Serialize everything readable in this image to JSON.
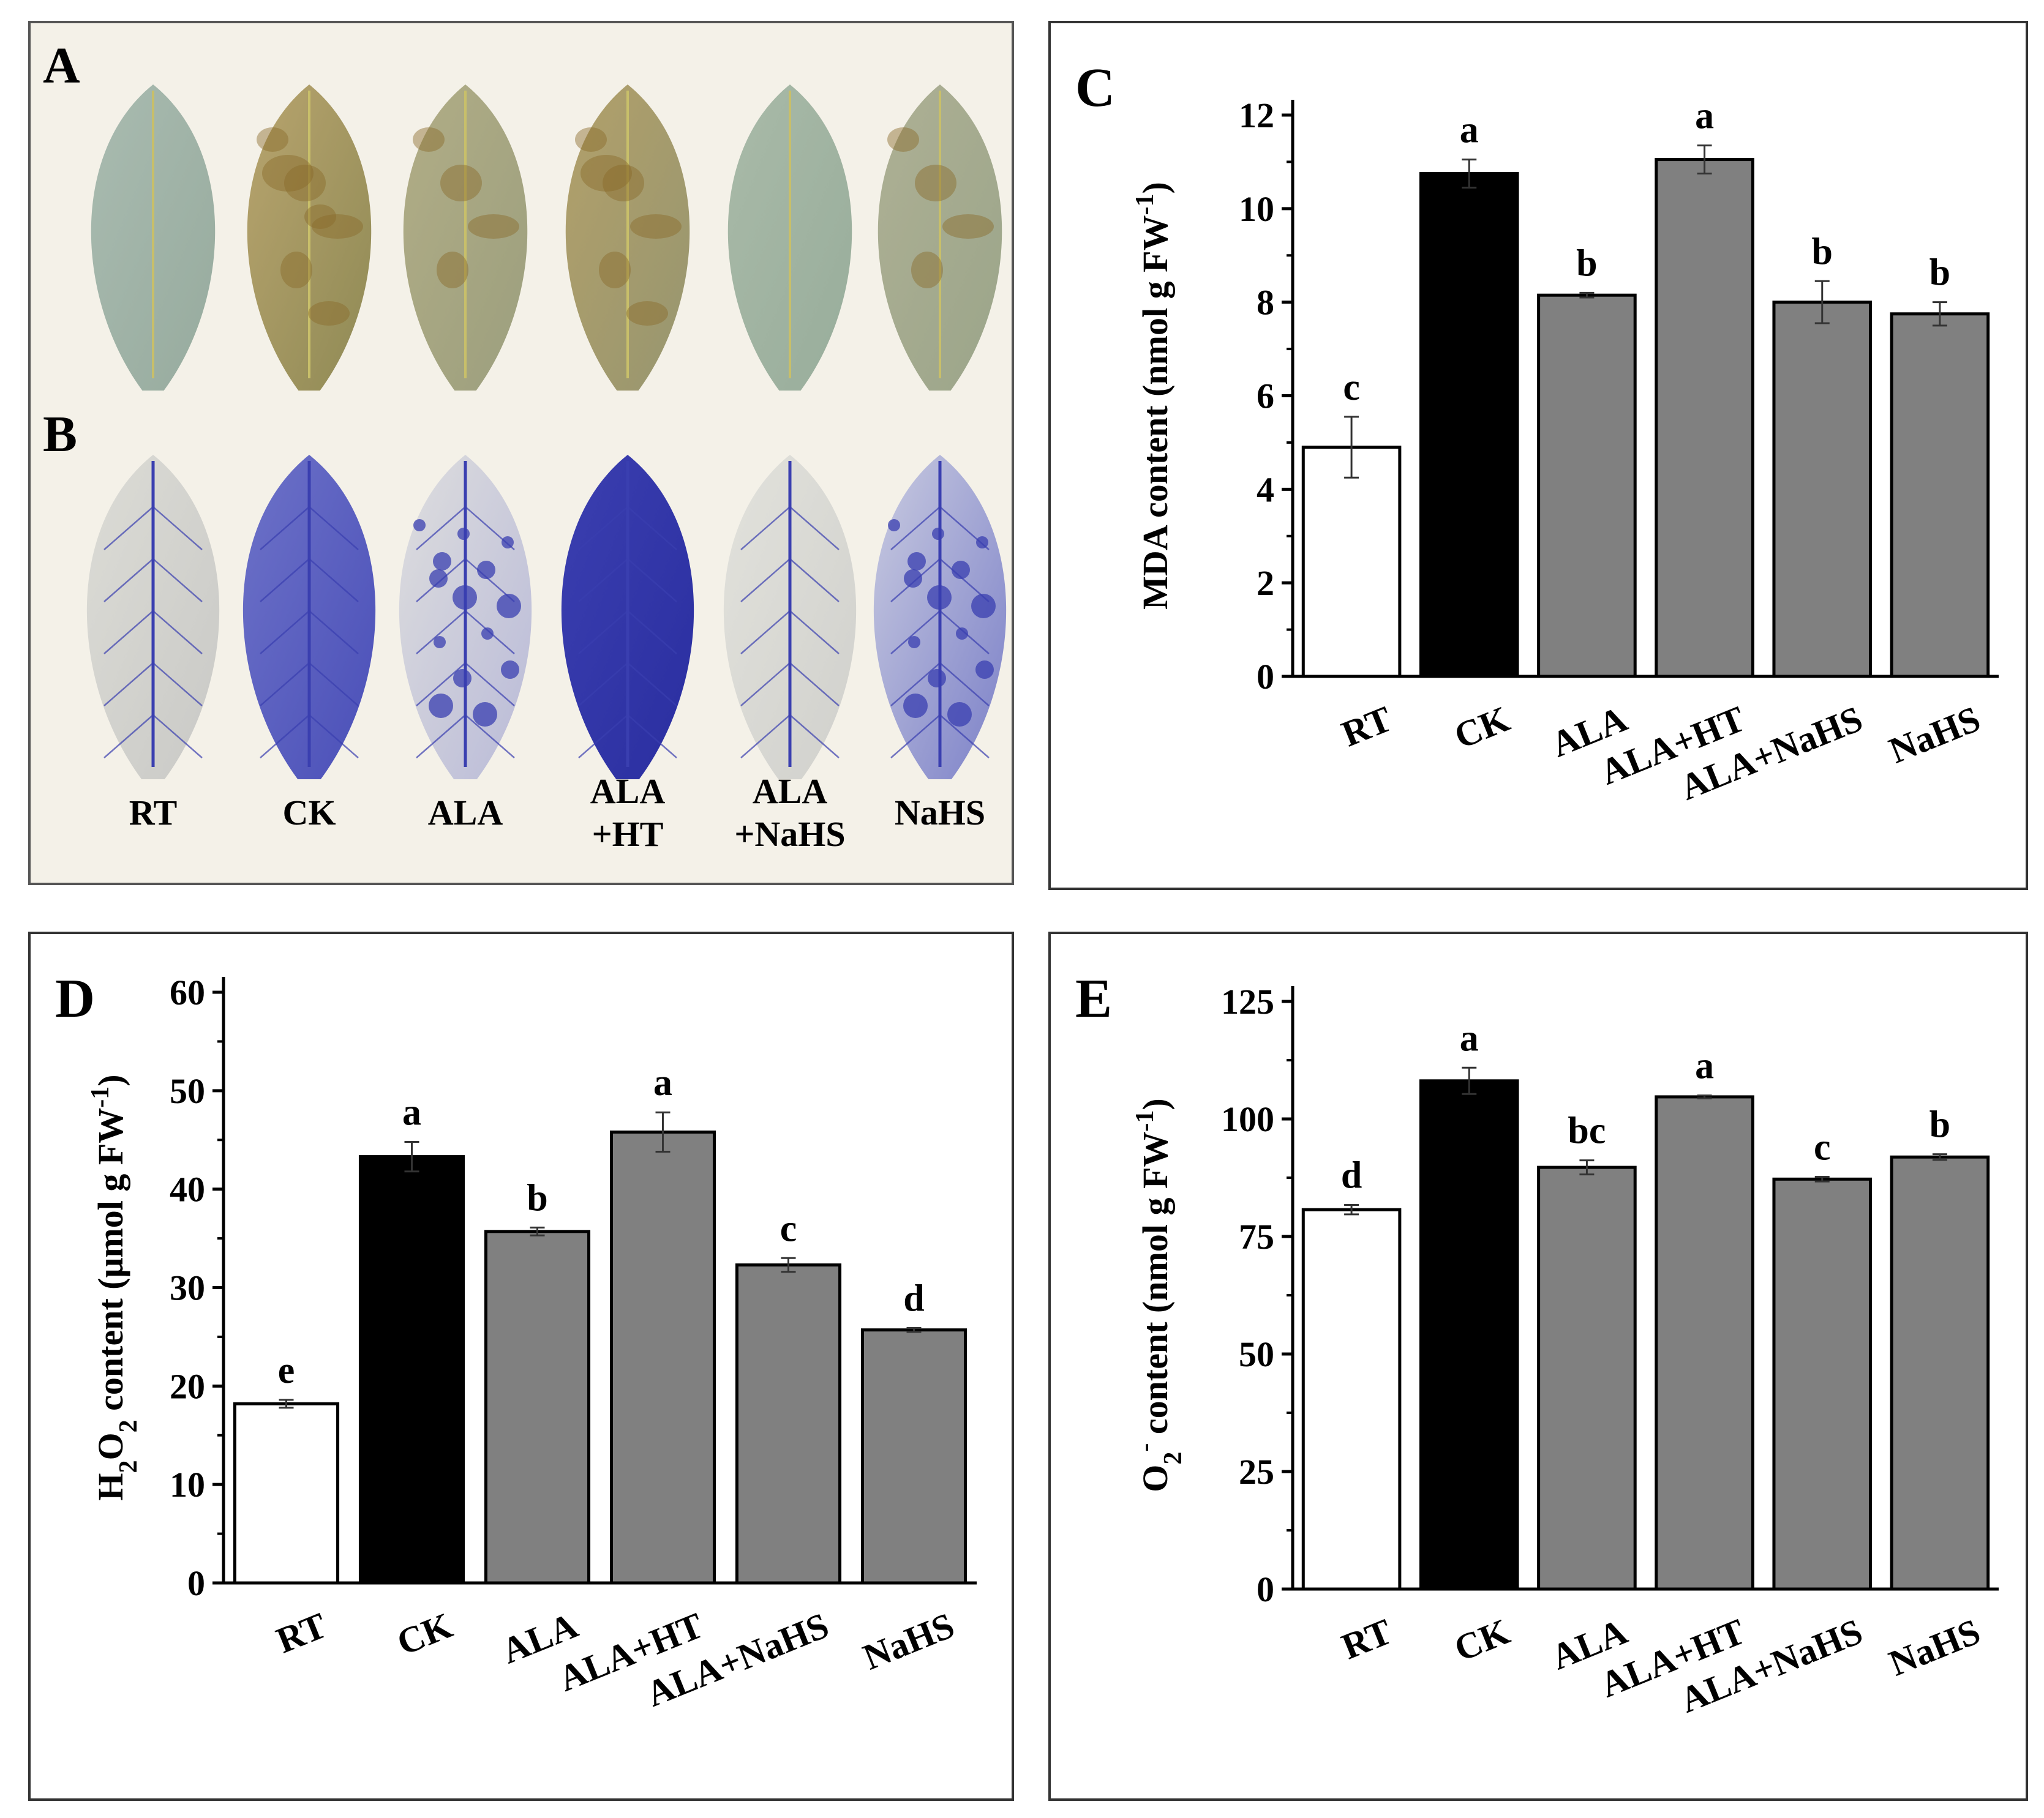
{
  "panel_ab": {
    "label_a": "A",
    "label_b": "B",
    "treatments": [
      {
        "line1": "RT",
        "line2": ""
      },
      {
        "line1": "CK",
        "line2": ""
      },
      {
        "line1": "ALA",
        "line2": ""
      },
      {
        "line1": "ALA",
        "line2": "+HT"
      },
      {
        "line1": "ALA",
        "line2": "+NaHS"
      },
      {
        "line1": "NaHS",
        "line2": ""
      }
    ],
    "colors": {
      "leaf_green": "#9fb3a4",
      "brown_spot": "#8a6a2a",
      "nbt_blue": "#3a3fb0",
      "pale_leaf": "#d8d8d4"
    }
  },
  "chart_data": [
    {
      "id": "C",
      "type": "bar",
      "panel_label": "C",
      "categories": [
        "RT",
        "CK",
        "ALA",
        "ALA+HT",
        "ALA+NaHS",
        "NaHS"
      ],
      "values": [
        4.9,
        10.75,
        8.15,
        11.05,
        8.0,
        7.75
      ],
      "errors": [
        0.65,
        0.3,
        0.05,
        0.3,
        0.45,
        0.25
      ],
      "letters": [
        "c",
        "a",
        "b",
        "a",
        "b",
        "b"
      ],
      "colors": [
        "#ffffff",
        "#000000",
        "#808080",
        "#808080",
        "#808080",
        "#808080"
      ],
      "ylabel": {
        "main": "MDA content (nmol g FW",
        "sup": "-1",
        "tail": ")"
      },
      "ylim": [
        0,
        12
      ],
      "yticks": [
        0,
        2,
        4,
        6,
        8,
        10,
        12
      ],
      "yticklabels": [
        "0",
        "2",
        "4",
        "6",
        "8",
        "10",
        "12"
      ]
    },
    {
      "id": "D",
      "type": "bar",
      "panel_label": "D",
      "categories": [
        "RT",
        "CK",
        "ALA",
        "ALA+HT",
        "ALA+NaHS",
        "NaHS"
      ],
      "values": [
        18.2,
        43.3,
        35.7,
        45.8,
        32.3,
        25.7
      ],
      "errors": [
        0.4,
        1.5,
        0.4,
        2.0,
        0.7,
        0.2
      ],
      "letters": [
        "e",
        "a",
        "b",
        "a",
        "c",
        "d"
      ],
      "colors": [
        "#ffffff",
        "#000000",
        "#808080",
        "#808080",
        "#808080",
        "#808080"
      ],
      "ylabel": {
        "prefix": "H",
        "sub1": "2",
        "mid": "O",
        "sub2": "2",
        "main": " content (μmol g FW",
        "sup": "-1",
        "tail": ")"
      },
      "ylim": [
        0,
        60
      ],
      "yticks": [
        0,
        10,
        20,
        30,
        40,
        50,
        60
      ],
      "yticklabels": [
        "0",
        "10",
        "20",
        "30",
        "40",
        "50",
        "60"
      ]
    },
    {
      "id": "E",
      "type": "bar",
      "panel_label": "E",
      "categories": [
        "RT",
        "CK",
        "ALA",
        "ALA+HT",
        "ALA+NaHS",
        "NaHS"
      ],
      "values": [
        80.7,
        108.1,
        89.7,
        104.7,
        87.2,
        91.9
      ],
      "errors": [
        1.0,
        2.8,
        1.5,
        0.3,
        0.5,
        0.6
      ],
      "letters": [
        "d",
        "a",
        "bc",
        "a",
        "c",
        "b"
      ],
      "colors": [
        "#ffffff",
        "#000000",
        "#808080",
        "#808080",
        "#808080",
        "#808080"
      ],
      "ylabel": {
        "prefix": "O",
        "sub1": "2",
        "supx": "-",
        "main": " content (nmol g FW",
        "sup": "-1",
        "tail": ")"
      },
      "ylim": [
        0,
        125
      ],
      "yticks": [
        0,
        25,
        50,
        75,
        100,
        125
      ],
      "yticklabels": [
        "0",
        "25",
        "50",
        "75",
        "100",
        "125"
      ]
    }
  ]
}
